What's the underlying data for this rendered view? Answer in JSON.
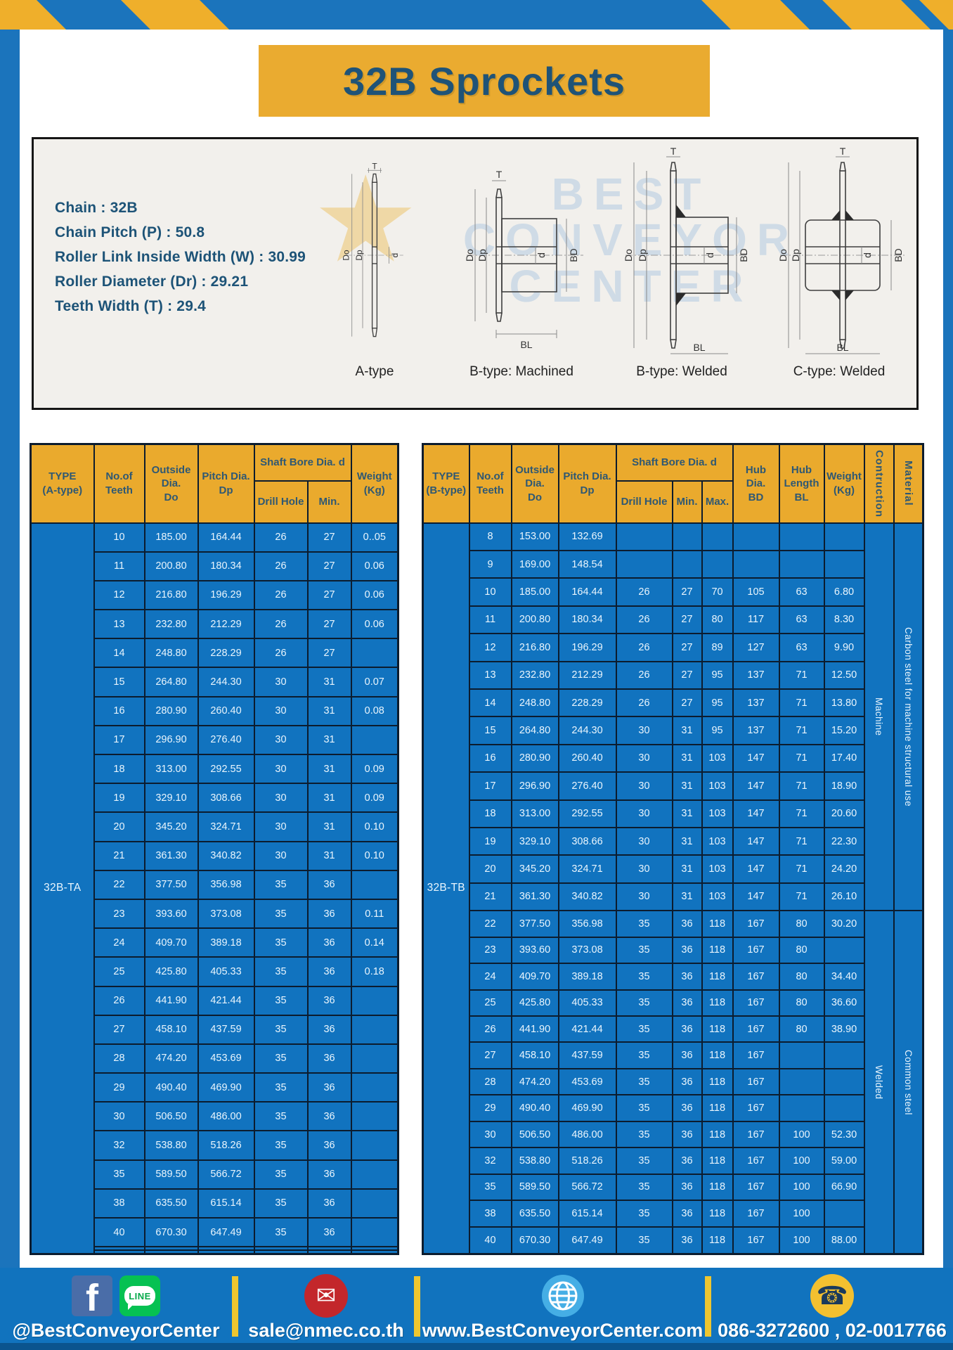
{
  "title": "32B Sprockets",
  "specs": {
    "lines": [
      "Chain : 32B",
      "Chain Pitch (P) : 50.8",
      "Roller Link Inside Width (W) : 30.99",
      "Roller Diameter (Dr) : 29.21",
      "Teeth Width (T) : 29.4"
    ]
  },
  "watermark": {
    "lines": [
      "BEST",
      "CONVEYOR",
      "CENTER"
    ],
    "star": "★"
  },
  "diagrams": [
    {
      "caption": "A-type",
      "dims": [
        "T",
        "Do",
        "Dp",
        "d"
      ]
    },
    {
      "caption": "B-type: Machined",
      "dims": [
        "T",
        "Do",
        "Dp",
        "d",
        "BD",
        "BL"
      ]
    },
    {
      "caption": "B-type: Welded",
      "dims": [
        "T",
        "Do",
        "Dp",
        "d",
        "BD",
        "BL"
      ]
    },
    {
      "caption": "C-type: Welded",
      "dims": [
        "T",
        "Do",
        "Dp",
        "d",
        "BD",
        "BL"
      ]
    }
  ],
  "colors": {
    "band_blue": "#1B74BC",
    "stripe_yellow": "#EFAF2B",
    "title_yellow": "#EAAB30",
    "header_yellow": "#EAAA2D",
    "table_blue": "#1173BF",
    "navy_text": "#1F5377",
    "footer_blue": "#1173BE"
  },
  "table_a": {
    "headers": {
      "type": "TYPE\n(A-type)",
      "teeth": "No.of\nTeeth",
      "outside": "Outside\nDia.\nDo",
      "pitch": "Pitch Dia.\nDp",
      "shaft_bore": "Shaft Bore Dia. d",
      "drill": "Drill Hole",
      "min": "Min.",
      "weight": "Weight\n(Kg)"
    },
    "spans": [
      {
        "row": 0,
        "pos": "start",
        "rowspan": 27,
        "text": "32B-TA",
        "class": "type-cell",
        "name": "type-a-label"
      }
    ],
    "rows": [
      [
        "10",
        "185.00",
        "164.44",
        "26",
        "27",
        "0..05"
      ],
      [
        "11",
        "200.80",
        "180.34",
        "26",
        "27",
        "0.06"
      ],
      [
        "12",
        "216.80",
        "196.29",
        "26",
        "27",
        "0.06"
      ],
      [
        "13",
        "232.80",
        "212.29",
        "26",
        "27",
        "0.06"
      ],
      [
        "14",
        "248.80",
        "228.29",
        "26",
        "27",
        ""
      ],
      [
        "15",
        "264.80",
        "244.30",
        "30",
        "31",
        "0.07"
      ],
      [
        "16",
        "280.90",
        "260.40",
        "30",
        "31",
        "0.08"
      ],
      [
        "17",
        "296.90",
        "276.40",
        "30",
        "31",
        ""
      ],
      [
        "18",
        "313.00",
        "292.55",
        "30",
        "31",
        "0.09"
      ],
      [
        "19",
        "329.10",
        "308.66",
        "30",
        "31",
        "0.09"
      ],
      [
        "20",
        "345.20",
        "324.71",
        "30",
        "31",
        "0.10"
      ],
      [
        "21",
        "361.30",
        "340.82",
        "30",
        "31",
        "0.10"
      ],
      [
        "22",
        "377.50",
        "356.98",
        "35",
        "36",
        ""
      ],
      [
        "23",
        "393.60",
        "373.08",
        "35",
        "36",
        "0.11"
      ],
      [
        "24",
        "409.70",
        "389.18",
        "35",
        "36",
        "0.14"
      ],
      [
        "25",
        "425.80",
        "405.33",
        "35",
        "36",
        "0.18"
      ],
      [
        "26",
        "441.90",
        "421.44",
        "35",
        "36",
        ""
      ],
      [
        "27",
        "458.10",
        "437.59",
        "35",
        "36",
        ""
      ],
      [
        "28",
        "474.20",
        "453.69",
        "35",
        "36",
        ""
      ],
      [
        "29",
        "490.40",
        "469.90",
        "35",
        "36",
        ""
      ],
      [
        "30",
        "506.50",
        "486.00",
        "35",
        "36",
        ""
      ],
      [
        "32",
        "538.80",
        "518.26",
        "35",
        "36",
        ""
      ],
      [
        "35",
        "589.50",
        "566.72",
        "35",
        "36",
        ""
      ],
      [
        "38",
        "635.50",
        "615.14",
        "35",
        "36",
        ""
      ],
      [
        "40",
        "670.30",
        "647.49",
        "35",
        "36",
        ""
      ],
      [
        "",
        "",
        "",
        "",
        "",
        ""
      ],
      [
        "",
        "",
        "",
        "",
        "",
        ""
      ]
    ]
  },
  "table_b": {
    "headers": {
      "type": "TYPE\n(B-type)",
      "teeth": "No.of\nTeeth",
      "outside": "Outside\nDia.\nDo",
      "pitch": "Pitch Dia.\nDp",
      "shaft_bore": "Shaft Bore Dia. d",
      "drill": "Drill Hole",
      "min": "Min.",
      "max": "Max.",
      "hub_dia": "Hub Dia.\nBD",
      "hub_len": "Hub\nLength\nBL",
      "weight": "Weight\n(Kg)",
      "construction": "Contruction",
      "material": "Material"
    },
    "spans": [
      {
        "row": 0,
        "pos": "start",
        "rowspan": 27,
        "text": "32B-TB",
        "class": "type-cell",
        "name": "type-b-label"
      },
      {
        "row": 0,
        "pos": "end",
        "rowspan": 14,
        "text": "Machine",
        "class": "vcell",
        "name": "construction-machine"
      },
      {
        "row": 0,
        "pos": "end",
        "rowspan": 14,
        "text": "Carbon steel for machine structural use",
        "class": "vcell",
        "name": "material-carbon-steel"
      },
      {
        "row": 14,
        "pos": "end",
        "rowspan": 13,
        "text": "Welded",
        "class": "vcell",
        "name": "construction-welded"
      },
      {
        "row": 14,
        "pos": "end",
        "rowspan": 13,
        "text": "Common steel",
        "class": "vcell",
        "name": "material-common-steel"
      }
    ],
    "rows": [
      [
        "8",
        "153.00",
        "132.69",
        "",
        "",
        "",
        "",
        "",
        ""
      ],
      [
        "9",
        "169.00",
        "148.54",
        "",
        "",
        "",
        "",
        "",
        ""
      ],
      [
        "10",
        "185.00",
        "164.44",
        "26",
        "27",
        "70",
        "105",
        "63",
        "6.80"
      ],
      [
        "11",
        "200.80",
        "180.34",
        "26",
        "27",
        "80",
        "117",
        "63",
        "8.30"
      ],
      [
        "12",
        "216.80",
        "196.29",
        "26",
        "27",
        "89",
        "127",
        "63",
        "9.90"
      ],
      [
        "13",
        "232.80",
        "212.29",
        "26",
        "27",
        "95",
        "137",
        "71",
        "12.50"
      ],
      [
        "14",
        "248.80",
        "228.29",
        "26",
        "27",
        "95",
        "137",
        "71",
        "13.80"
      ],
      [
        "15",
        "264.80",
        "244.30",
        "30",
        "31",
        "95",
        "137",
        "71",
        "15.20"
      ],
      [
        "16",
        "280.90",
        "260.40",
        "30",
        "31",
        "103",
        "147",
        "71",
        "17.40"
      ],
      [
        "17",
        "296.90",
        "276.40",
        "30",
        "31",
        "103",
        "147",
        "71",
        "18.90"
      ],
      [
        "18",
        "313.00",
        "292.55",
        "30",
        "31",
        "103",
        "147",
        "71",
        "20.60"
      ],
      [
        "19",
        "329.10",
        "308.66",
        "30",
        "31",
        "103",
        "147",
        "71",
        "22.30"
      ],
      [
        "20",
        "345.20",
        "324.71",
        "30",
        "31",
        "103",
        "147",
        "71",
        "24.20"
      ],
      [
        "21",
        "361.30",
        "340.82",
        "30",
        "31",
        "103",
        "147",
        "71",
        "26.10"
      ],
      [
        "22",
        "377.50",
        "356.98",
        "35",
        "36",
        "118",
        "167",
        "80",
        "30.20"
      ],
      [
        "23",
        "393.60",
        "373.08",
        "35",
        "36",
        "118",
        "167",
        "80",
        ""
      ],
      [
        "24",
        "409.70",
        "389.18",
        "35",
        "36",
        "118",
        "167",
        "80",
        "34.40"
      ],
      [
        "25",
        "425.80",
        "405.33",
        "35",
        "36",
        "118",
        "167",
        "80",
        "36.60"
      ],
      [
        "26",
        "441.90",
        "421.44",
        "35",
        "36",
        "118",
        "167",
        "80",
        "38.90"
      ],
      [
        "27",
        "458.10",
        "437.59",
        "35",
        "36",
        "118",
        "167",
        "",
        ""
      ],
      [
        "28",
        "474.20",
        "453.69",
        "35",
        "36",
        "118",
        "167",
        "",
        ""
      ],
      [
        "29",
        "490.40",
        "469.90",
        "35",
        "36",
        "118",
        "167",
        "",
        ""
      ],
      [
        "30",
        "506.50",
        "486.00",
        "35",
        "36",
        "118",
        "167",
        "100",
        "52.30"
      ],
      [
        "32",
        "538.80",
        "518.26",
        "35",
        "36",
        "118",
        "167",
        "100",
        "59.00"
      ],
      [
        "35",
        "589.50",
        "566.72",
        "35",
        "36",
        "118",
        "167",
        "100",
        "66.90"
      ],
      [
        "38",
        "635.50",
        "615.14",
        "35",
        "36",
        "118",
        "167",
        "100",
        ""
      ],
      [
        "40",
        "670.30",
        "647.49",
        "35",
        "36",
        "118",
        "167",
        "100",
        "88.00"
      ]
    ]
  },
  "footer": {
    "facebook_f": "f",
    "line_text": "LINE",
    "social_label": "@BestConveyorCenter",
    "mail_glyph": "✉",
    "email": "sale@nmec.co.th",
    "website": "www.BestConveyorCenter.com",
    "phone_glyph": "☎",
    "phones": "086-3272600 , 02-0017766"
  }
}
